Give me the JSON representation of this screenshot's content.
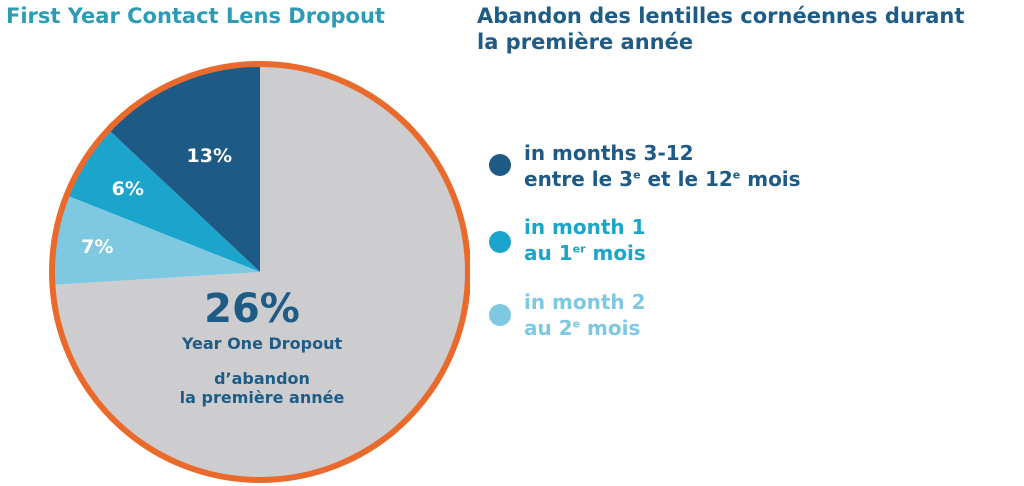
{
  "titles": {
    "en": "First Year Contact Lens Dropout",
    "fr_line1": "Abandon des lentilles cornéennes durant",
    "fr_line2": "la première année"
  },
  "colors": {
    "title_en": "#2d9bb3",
    "title_fr": "#1e5c86",
    "ring": "#ea6a2c",
    "rest": "#cdcdd0",
    "center_value": "#1e5c86",
    "center_text": "#1e5c86"
  },
  "center": {
    "value": "26%",
    "line1": "Year One Dropout",
    "line2": "d’abandon",
    "line3": "la première année"
  },
  "legend": [
    {
      "en": "in months 3-12",
      "fr_parts": [
        "entre le 3",
        "e",
        " et le 12",
        "e",
        " mois"
      ],
      "color": "#1e5a86"
    },
    {
      "en": "in month 1",
      "fr_parts": [
        "au 1",
        "er",
        " mois"
      ],
      "color": "#1ba5cc"
    },
    {
      "en": "in month 2",
      "fr_parts": [
        "au 2",
        "e",
        " mois"
      ],
      "color": "#7ec8e1"
    }
  ],
  "chart_data": {
    "type": "pie",
    "slices": [
      {
        "label": "13%",
        "value": 13,
        "series": "in months 3-12",
        "color": "#1e5a86"
      },
      {
        "label": "6%",
        "value": 6,
        "series": "in month 1",
        "color": "#1ba5cc"
      },
      {
        "label": "7%",
        "value": 7,
        "series": "in month 2",
        "color": "#7ec8e1"
      },
      {
        "label": "",
        "value": 74,
        "series": "",
        "color": "#cdcdd0"
      }
    ],
    "title": "First Year Contact Lens Dropout",
    "total_dropout": "26%",
    "legend_placement": "right"
  }
}
